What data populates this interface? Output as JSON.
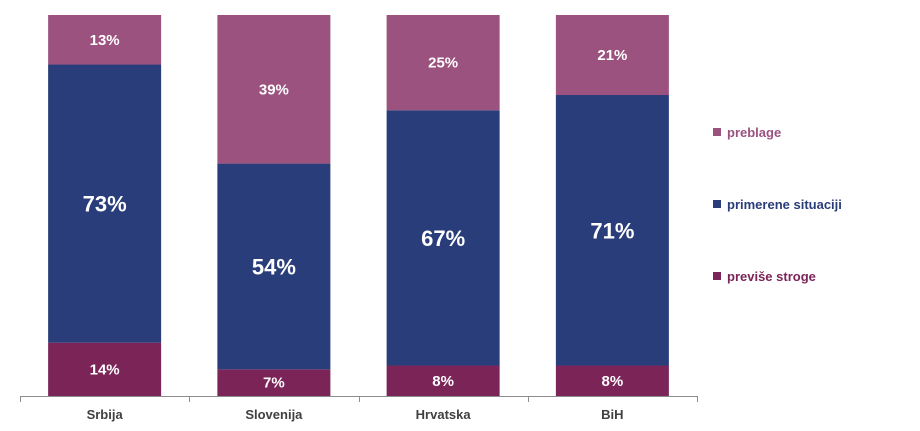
{
  "chart_data": {
    "type": "bar",
    "stacked": true,
    "percent_stacked": true,
    "categories": [
      "Srbija",
      "Slovenija",
      "Hrvatska",
      "BiH"
    ],
    "series": [
      {
        "name": "previše stroge",
        "values": [
          14,
          7,
          8,
          8
        ],
        "color": "#7b2458",
        "labels": [
          "14%",
          "7%",
          "8%",
          "8%"
        ]
      },
      {
        "name": "primerene situaciji",
        "values": [
          73,
          54,
          67,
          71
        ],
        "color": "#293d7a",
        "labels": [
          "73%",
          "54%",
          "67%",
          "71%"
        ]
      },
      {
        "name": "preblage",
        "values": [
          13,
          39,
          25,
          21
        ],
        "color": "#9c527f",
        "labels": [
          "13%",
          "39%",
          "25%",
          "21%"
        ]
      }
    ],
    "ylim": [
      0,
      100
    ],
    "grid": false,
    "legend": "right"
  },
  "legend": {
    "items": [
      {
        "name": "preblage",
        "color": "#9c527f",
        "text_color": "#9c527f"
      },
      {
        "name": "primerene situaciji",
        "color": "#293d7a",
        "text_color": "#293d7a"
      },
      {
        "name": "previše stroge",
        "color": "#7b2458",
        "text_color": "#7b2458"
      }
    ]
  }
}
